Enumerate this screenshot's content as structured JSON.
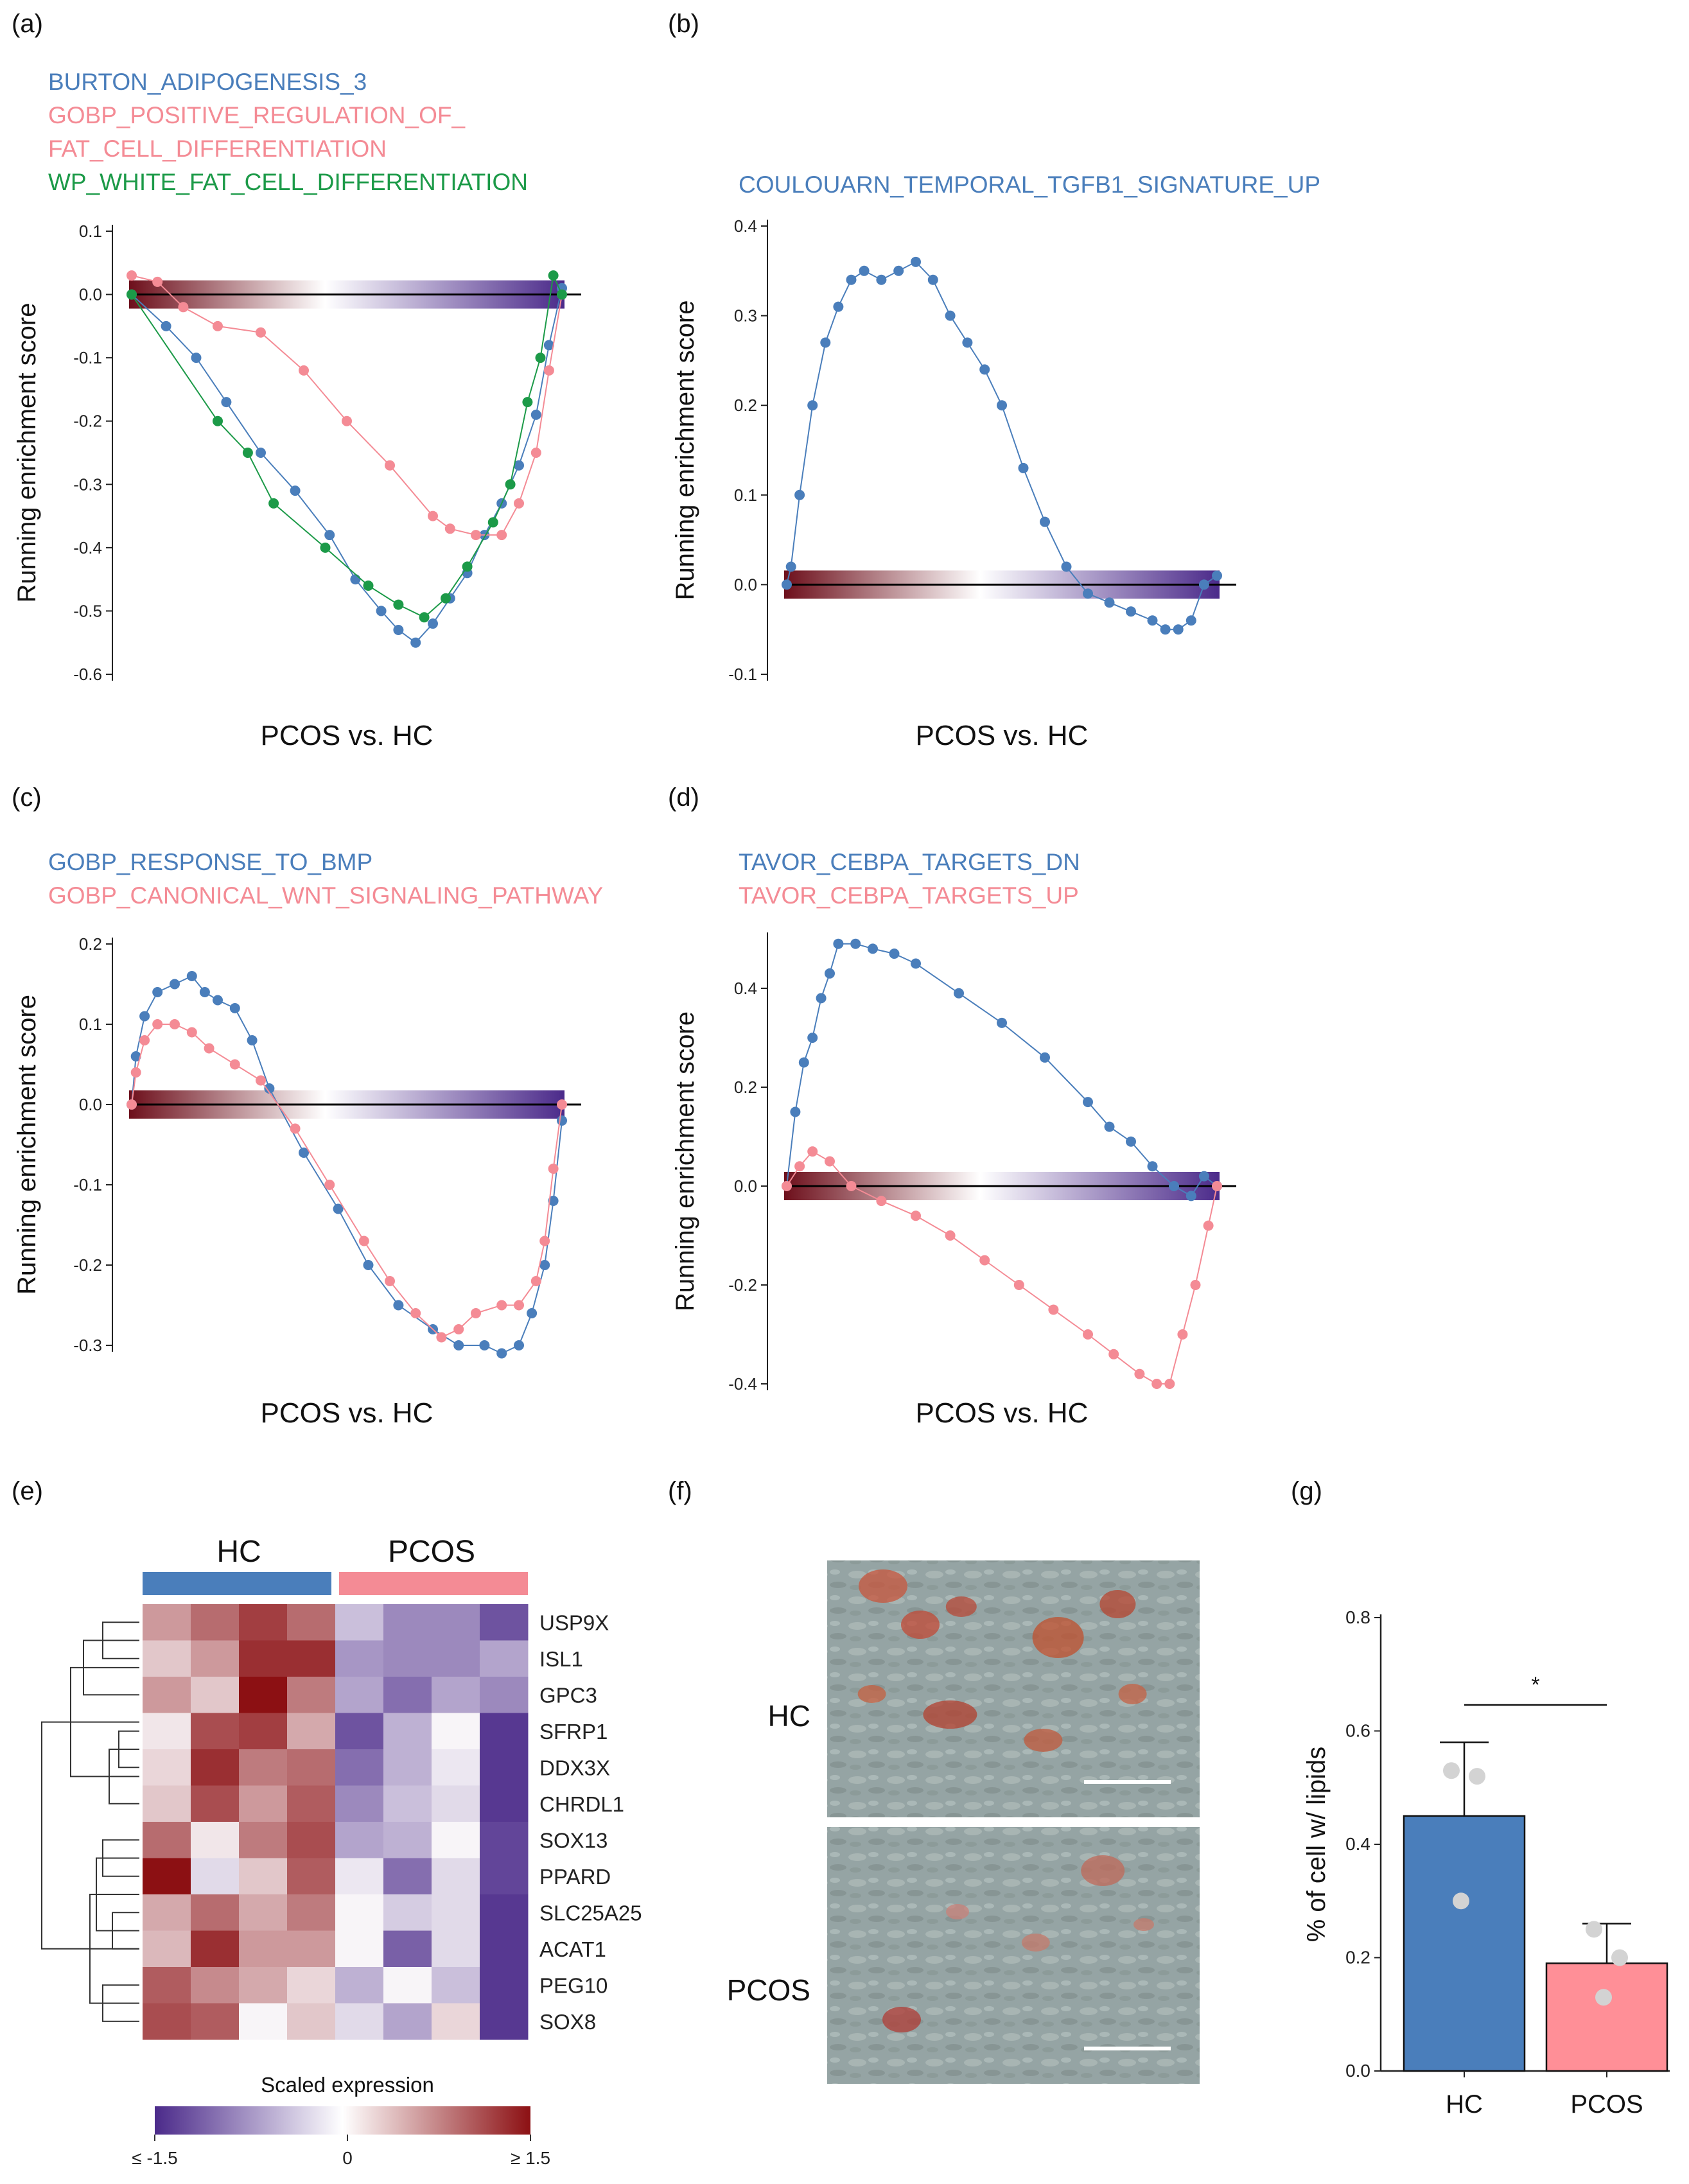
{
  "figure": {
    "panel_labels": {
      "a": "(a)",
      "b": "(b)",
      "c": "(c)",
      "d": "(d)",
      "e": "(e)",
      "f": "(f)",
      "g": "(g)"
    },
    "common": {
      "ylabel": "Running enrichment score",
      "xlabel": "PCOS vs. HC"
    },
    "colors": {
      "blue": "#4a7ebb",
      "pink": "#f48b95",
      "green": "#1c9a48",
      "bar_red": "#7a1420",
      "bar_purple": "#4b2a8a"
    },
    "panel_e": {
      "title_hc": "HC",
      "title_pcos": "PCOS",
      "legend_title": "Scaled expression",
      "legend_ticks": [
        "≤ -1.5",
        "0",
        "≥ 1.5"
      ]
    },
    "panel_f": {
      "label_hc": "HC",
      "label_pcos": "PCOS"
    }
  },
  "chart_data": [
    {
      "id": "a",
      "type": "line",
      "ylim": [
        -0.6,
        0.1
      ],
      "yticks": [
        "0.1",
        "0.0",
        "-0.1",
        "-0.2",
        "-0.3",
        "-0.4",
        "-0.5",
        "-0.6"
      ],
      "xlabel": "PCOS vs. HC",
      "ylabel": "Running enrichment score",
      "series": [
        {
          "name": "BURTON_ADIPOGENESIS_3",
          "color": "#4a7ebb",
          "x": [
            0,
            0.08,
            0.15,
            0.22,
            0.3,
            0.38,
            0.46,
            0.52,
            0.58,
            0.62,
            0.66,
            0.7,
            0.74,
            0.78,
            0.82,
            0.86,
            0.9,
            0.94,
            0.97,
            1.0
          ],
          "values": [
            0.0,
            -0.05,
            -0.1,
            -0.17,
            -0.25,
            -0.31,
            -0.38,
            -0.45,
            -0.5,
            -0.53,
            -0.55,
            -0.52,
            -0.48,
            -0.44,
            -0.38,
            -0.33,
            -0.27,
            -0.19,
            -0.08,
            0.01
          ]
        },
        {
          "name": "GOBP_POSITIVE_REGULATION_OF_\nFAT_CELL_DIFFERENTIATION",
          "color": "#f48b95",
          "x": [
            0,
            0.06,
            0.12,
            0.2,
            0.3,
            0.4,
            0.5,
            0.6,
            0.7,
            0.74,
            0.8,
            0.86,
            0.9,
            0.94,
            0.97,
            1.0
          ],
          "values": [
            0.03,
            0.02,
            -0.02,
            -0.05,
            -0.06,
            -0.12,
            -0.2,
            -0.27,
            -0.35,
            -0.37,
            -0.38,
            -0.38,
            -0.33,
            -0.25,
            -0.12,
            0.0
          ]
        },
        {
          "name": "WP_WHITE_FAT_CELL_DIFFERENTIATION",
          "color": "#1c9a48",
          "x": [
            0,
            0.2,
            0.27,
            0.33,
            0.45,
            0.55,
            0.62,
            0.68,
            0.73,
            0.78,
            0.84,
            0.88,
            0.92,
            0.95,
            0.98,
            1.0
          ],
          "values": [
            0.0,
            -0.2,
            -0.25,
            -0.33,
            -0.4,
            -0.46,
            -0.49,
            -0.51,
            -0.48,
            -0.43,
            -0.36,
            -0.3,
            -0.17,
            -0.1,
            0.03,
            0.0
          ]
        }
      ]
    },
    {
      "id": "b",
      "type": "line",
      "ylim": [
        -0.1,
        0.4
      ],
      "yticks": [
        "0.4",
        "0.3",
        "0.2",
        "0.1",
        "0.0",
        "-0.1"
      ],
      "xlabel": "PCOS vs. HC",
      "ylabel": "Running enrichment score",
      "series": [
        {
          "name": "COULOUARN_TEMPORAL_TGFB1_SIGNATURE_UP",
          "color": "#4a7ebb",
          "x": [
            0,
            0.01,
            0.03,
            0.06,
            0.09,
            0.12,
            0.15,
            0.18,
            0.22,
            0.26,
            0.3,
            0.34,
            0.38,
            0.42,
            0.46,
            0.5,
            0.55,
            0.6,
            0.65,
            0.7,
            0.75,
            0.8,
            0.85,
            0.88,
            0.91,
            0.94,
            0.97,
            1.0
          ],
          "values": [
            0.0,
            0.02,
            0.1,
            0.2,
            0.27,
            0.31,
            0.34,
            0.35,
            0.34,
            0.35,
            0.36,
            0.34,
            0.3,
            0.27,
            0.24,
            0.2,
            0.13,
            0.07,
            0.02,
            -0.01,
            -0.02,
            -0.03,
            -0.04,
            -0.05,
            -0.05,
            -0.04,
            0.0,
            0.01
          ]
        }
      ]
    },
    {
      "id": "c",
      "type": "line",
      "ylim": [
        -0.3,
        0.2
      ],
      "yticks": [
        "0.2",
        "0.1",
        "0.0",
        "-0.1",
        "-0.2",
        "-0.3"
      ],
      "xlabel": "PCOS vs. HC",
      "ylabel": "Running enrichment score",
      "series": [
        {
          "name": "GOBP_RESPONSE_TO_BMP",
          "color": "#4a7ebb",
          "x": [
            0,
            0.01,
            0.03,
            0.06,
            0.1,
            0.14,
            0.17,
            0.2,
            0.24,
            0.28,
            0.32,
            0.4,
            0.48,
            0.55,
            0.62,
            0.7,
            0.76,
            0.82,
            0.86,
            0.9,
            0.93,
            0.96,
            0.98,
            1.0
          ],
          "values": [
            0.0,
            0.06,
            0.11,
            0.14,
            0.15,
            0.16,
            0.14,
            0.13,
            0.12,
            0.08,
            0.02,
            -0.06,
            -0.13,
            -0.2,
            -0.25,
            -0.28,
            -0.3,
            -0.3,
            -0.31,
            -0.3,
            -0.26,
            -0.2,
            -0.12,
            -0.02
          ]
        },
        {
          "name": "GOBP_CANONICAL_WNT_SIGNALING_PATHWAY",
          "color": "#f48b95",
          "x": [
            0,
            0.01,
            0.03,
            0.06,
            0.1,
            0.14,
            0.18,
            0.24,
            0.3,
            0.38,
            0.46,
            0.54,
            0.6,
            0.66,
            0.72,
            0.76,
            0.8,
            0.86,
            0.9,
            0.94,
            0.96,
            0.98,
            1.0
          ],
          "values": [
            0.0,
            0.04,
            0.08,
            0.1,
            0.1,
            0.09,
            0.07,
            0.05,
            0.03,
            -0.03,
            -0.1,
            -0.17,
            -0.22,
            -0.26,
            -0.29,
            -0.28,
            -0.26,
            -0.25,
            -0.25,
            -0.22,
            -0.17,
            -0.08,
            0.0
          ]
        }
      ]
    },
    {
      "id": "d",
      "type": "line",
      "ylim": [
        -0.4,
        0.5
      ],
      "yticks": [
        "0.4",
        "0.2",
        "0.0",
        "-0.2",
        "-0.4"
      ],
      "xlabel": "PCOS vs. HC",
      "ylabel": "Running enrichment score",
      "series": [
        {
          "name": "TAVOR_CEBPA_TARGETS_DN",
          "color": "#4a7ebb",
          "x": [
            0,
            0.02,
            0.04,
            0.06,
            0.08,
            0.1,
            0.12,
            0.16,
            0.2,
            0.25,
            0.3,
            0.4,
            0.5,
            0.6,
            0.7,
            0.75,
            0.8,
            0.85,
            0.9,
            0.94,
            0.97,
            1.0
          ],
          "values": [
            0.0,
            0.15,
            0.25,
            0.3,
            0.38,
            0.43,
            0.49,
            0.49,
            0.48,
            0.47,
            0.45,
            0.39,
            0.33,
            0.26,
            0.17,
            0.12,
            0.09,
            0.04,
            0.0,
            -0.02,
            0.02,
            0.0
          ]
        },
        {
          "name": "TAVOR_CEBPA_TARGETS_UP",
          "color": "#f48b95",
          "x": [
            0,
            0.03,
            0.06,
            0.1,
            0.15,
            0.22,
            0.3,
            0.38,
            0.46,
            0.54,
            0.62,
            0.7,
            0.76,
            0.82,
            0.86,
            0.89,
            0.92,
            0.95,
            0.98,
            1.0
          ],
          "values": [
            0.0,
            0.04,
            0.07,
            0.05,
            0.0,
            -0.03,
            -0.06,
            -0.1,
            -0.15,
            -0.2,
            -0.25,
            -0.3,
            -0.34,
            -0.38,
            -0.4,
            -0.4,
            -0.3,
            -0.2,
            -0.08,
            0.0
          ]
        }
      ]
    },
    {
      "id": "e",
      "type": "heatmap",
      "title": "Scaled expression",
      "groups": [
        "HC",
        "PCOS"
      ],
      "rows": [
        "USP9X",
        "ISL1",
        "GPC3",
        "SFRP1",
        "DDX3X",
        "CHRDL1",
        "SOX13",
        "PPARD",
        "SLC25A25",
        "ACAT1",
        "PEG10",
        "SOX8"
      ],
      "scale": [
        -1.5,
        1.5
      ],
      "values": [
        [
          0.6,
          0.9,
          1.2,
          0.9,
          -0.4,
          -0.8,
          -0.8,
          -1.2
        ],
        [
          0.3,
          0.6,
          1.3,
          1.3,
          -0.7,
          -0.8,
          -0.8,
          -0.6
        ],
        [
          0.6,
          0.3,
          1.5,
          0.8,
          -0.6,
          -1.0,
          -0.6,
          -0.8
        ],
        [
          0.1,
          1.1,
          1.2,
          0.5,
          -1.2,
          -0.5,
          0.0,
          -1.4
        ],
        [
          0.2,
          1.3,
          0.8,
          0.9,
          -1.0,
          -0.5,
          -0.1,
          -1.4
        ],
        [
          0.3,
          1.1,
          0.6,
          1.0,
          -0.8,
          -0.4,
          -0.2,
          -1.4
        ],
        [
          0.9,
          0.1,
          0.8,
          1.1,
          -0.6,
          -0.5,
          0.0,
          -1.3
        ],
        [
          1.5,
          -0.2,
          0.3,
          1.0,
          -0.1,
          -1.0,
          -0.2,
          -1.3
        ],
        [
          0.5,
          0.9,
          0.5,
          0.8,
          0.0,
          -0.3,
          -0.2,
          -1.4
        ],
        [
          0.4,
          1.3,
          0.6,
          0.6,
          0.0,
          -1.1,
          -0.2,
          -1.4
        ],
        [
          1.0,
          0.7,
          0.5,
          0.2,
          -0.5,
          0.0,
          -0.4,
          -1.4
        ],
        [
          1.1,
          1.0,
          0.0,
          0.3,
          -0.2,
          -0.6,
          0.2,
          -1.4
        ]
      ]
    },
    {
      "id": "g",
      "type": "bar",
      "categories": [
        "HC",
        "PCOS"
      ],
      "values": [
        0.45,
        0.19
      ],
      "errors": [
        0.13,
        0.07
      ],
      "points": [
        [
          0.53,
          0.52,
          0.3
        ],
        [
          0.25,
          0.2,
          0.13
        ]
      ],
      "bar_colors": [
        "#4a7ebb",
        "#ff8f97"
      ],
      "ylabel": "% of cell w/ lipids",
      "ylim": [
        0.0,
        0.8
      ],
      "yticks": [
        "0.0",
        "0.2",
        "0.4",
        "0.6",
        "0.8"
      ],
      "annotation": "*"
    }
  ]
}
